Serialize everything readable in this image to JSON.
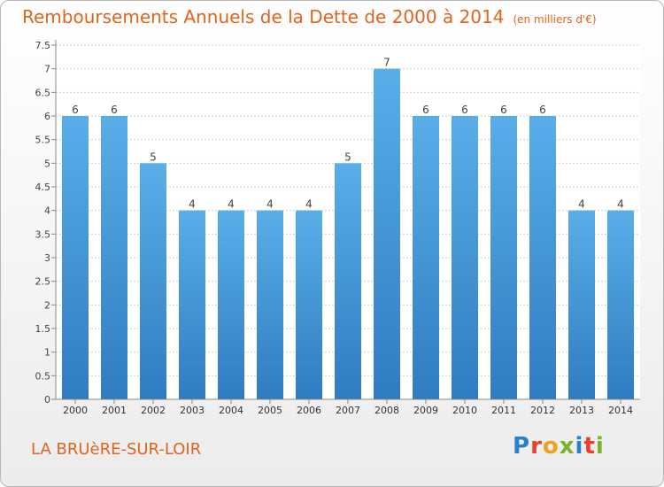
{
  "title": "Remboursements Annuels de la Dette de 2000 à 2014",
  "subtitle": "(en milliers d'€)",
  "town": "LA BRUèRE-SUR-LOIR",
  "logo": {
    "letters": [
      "P",
      "r",
      "o",
      "x",
      "i",
      "t",
      "i"
    ],
    "colors": [
      "#2a7fc9",
      "#e8402a",
      "#f0a020",
      "#7ab32a",
      "#2a7fc9",
      "#e8402a",
      "#7ab32a"
    ]
  },
  "colors": {
    "bar_top": "#5aaee8",
    "bar_bottom": "#2f7cc0",
    "title": "#e0641e",
    "grid": "#cfcfcf"
  },
  "chart_data": {
    "type": "bar",
    "title": "Remboursements Annuels de la Dette de 2000 à 2014",
    "subtitle": "(en milliers d'€)",
    "xlabel": "",
    "ylabel": "",
    "categories": [
      "2000",
      "2001",
      "2002",
      "2003",
      "2004",
      "2005",
      "2006",
      "2007",
      "2008",
      "2009",
      "2010",
      "2011",
      "2012",
      "2013",
      "2014"
    ],
    "values": [
      6,
      6,
      5,
      4,
      4,
      4,
      4,
      5,
      7,
      6,
      6,
      6,
      6,
      4,
      4
    ],
    "data_labels": [
      "6",
      "6",
      "5",
      "4",
      "4",
      "4",
      "4",
      "5",
      "7",
      "6",
      "6",
      "6",
      "6",
      "4",
      "4"
    ],
    "ylim": [
      0,
      7.5
    ],
    "yticks": [
      0,
      0.5,
      1,
      1.5,
      2,
      2.5,
      3,
      3.5,
      4,
      4.5,
      5,
      5.5,
      6,
      6.5,
      7,
      7.5
    ],
    "ytick_labels": [
      "0",
      "0.5",
      "1",
      "1.5",
      "2",
      "2.5",
      "3",
      "3.5",
      "4",
      "4.5",
      "5",
      "5.5",
      "6",
      "6.5",
      "7",
      "7.5"
    ],
    "grid": true,
    "legend": "none"
  }
}
